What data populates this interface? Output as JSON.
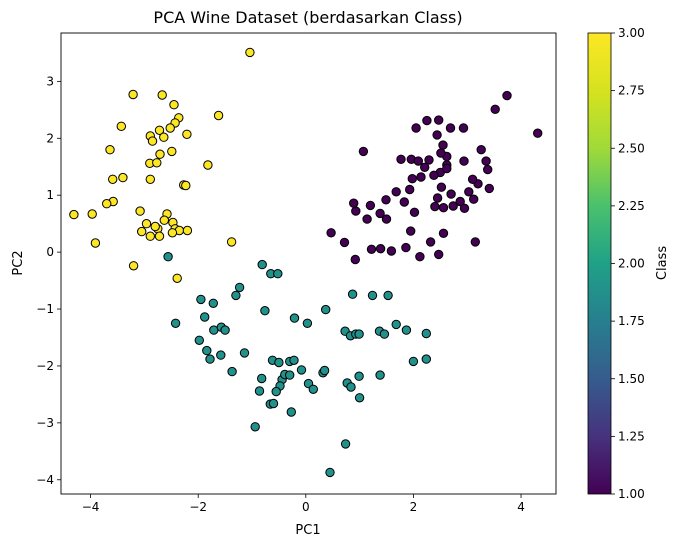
{
  "chart_data": {
    "type": "scatter",
    "title": "PCA Wine Dataset (berdasarkan Class)",
    "xlabel": "PC1",
    "ylabel": "PC2",
    "xlim": [
      -4.55,
      4.65
    ],
    "ylim": [
      -4.25,
      3.85
    ],
    "xticks": [
      -4,
      -2,
      0,
      2,
      4
    ],
    "yticks": [
      -4,
      -3,
      -2,
      -1,
      0,
      1,
      2,
      3
    ],
    "xtick_labels": [
      "−4",
      "−2",
      "0",
      "2",
      "4"
    ],
    "ytick_labels": [
      "−4",
      "−3",
      "−2",
      "−1",
      "0",
      "1",
      "2",
      "3"
    ],
    "grid": false,
    "legend": "none",
    "colorbar": {
      "label": "Class",
      "range": [
        1.0,
        3.0
      ],
      "ticks": [
        1.0,
        1.25,
        1.5,
        1.75,
        2.0,
        2.25,
        2.5,
        2.75,
        3.0
      ],
      "tick_labels": [
        "1.00",
        "1.25",
        "1.50",
        "1.75",
        "2.00",
        "2.25",
        "2.50",
        "2.75",
        "3.00"
      ],
      "colormap": "viridis",
      "colors": [
        "#440154",
        "#3b528b",
        "#21918c",
        "#5ec962",
        "#fde725"
      ]
    },
    "series": [
      {
        "class": 1,
        "color": "#440154",
        "points": [
          [
            4.31,
            2.09
          ],
          [
            3.74,
            2.75
          ],
          [
            3.52,
            2.51
          ],
          [
            3.38,
            1.45
          ],
          [
            3.26,
            1.8
          ],
          [
            3.35,
            1.6
          ],
          [
            3.41,
            1.12
          ],
          [
            3.2,
            1.2
          ],
          [
            3.1,
            1.28
          ],
          [
            2.94,
            1.6
          ],
          [
            3.03,
            1.06
          ],
          [
            2.87,
            0.89
          ],
          [
            2.95,
            0.77
          ],
          [
            2.74,
            0.81
          ],
          [
            2.7,
            1.02
          ],
          [
            2.62,
            1.53
          ],
          [
            2.62,
            1.68
          ],
          [
            2.55,
            1.88
          ],
          [
            2.51,
            1.74
          ],
          [
            2.5,
            1.4
          ],
          [
            2.45,
            0.95
          ],
          [
            2.38,
            1.35
          ],
          [
            2.29,
            1.62
          ],
          [
            2.21,
            1.49
          ],
          [
            2.52,
            1.14
          ],
          [
            2.56,
            0.78
          ],
          [
            2.4,
            0.8
          ],
          [
            2.47,
            2.32
          ],
          [
            2.69,
            2.18
          ],
          [
            2.93,
            2.18
          ],
          [
            2.44,
            2.06
          ],
          [
            2.25,
            2.31
          ],
          [
            2.05,
            2.18
          ],
          [
            1.96,
            1.63
          ],
          [
            2.09,
            1.6
          ],
          [
            2.14,
            1.32
          ],
          [
            1.98,
            1.29
          ],
          [
            1.93,
            1.1
          ],
          [
            2.02,
            0.7
          ],
          [
            1.83,
            0.88
          ],
          [
            1.68,
            1.06
          ],
          [
            1.49,
            0.92
          ],
          [
            1.38,
            0.68
          ],
          [
            1.2,
            0.82
          ],
          [
            1.07,
            1.77
          ],
          [
            1.14,
            0.58
          ],
          [
            0.89,
            0.86
          ],
          [
            0.93,
            0.72
          ],
          [
            1.39,
            0.06
          ],
          [
            1.59,
            0.02
          ],
          [
            1.95,
            0.37
          ],
          [
            2.12,
            -0.08
          ],
          [
            2.32,
            0.18
          ],
          [
            2.47,
            -0.04
          ],
          [
            2.56,
            0.33
          ],
          [
            3.15,
            0.18
          ],
          [
            0.47,
            0.34
          ],
          [
            0.72,
            0.17
          ],
          [
            0.92,
            -0.13
          ],
          [
            1.22,
            0.05
          ],
          [
            1.86,
            0.08
          ],
          [
            2.62,
            1.47
          ],
          [
            3.12,
            0.93
          ],
          [
            1.77,
            1.63
          ],
          [
            1.5,
            0.58
          ]
        ]
      },
      {
        "class": 2,
        "color": "#21918c",
        "points": [
          [
            -2.56,
            -0.08
          ],
          [
            -2.42,
            -1.25
          ],
          [
            -1.95,
            -0.83
          ],
          [
            -1.72,
            -0.9
          ],
          [
            -1.88,
            -1.14
          ],
          [
            -1.71,
            -1.37
          ],
          [
            -1.57,
            -1.32
          ],
          [
            -1.5,
            -1.37
          ],
          [
            -1.3,
            -0.76
          ],
          [
            -1.23,
            -0.62
          ],
          [
            -0.81,
            -0.22
          ],
          [
            -0.65,
            -0.38
          ],
          [
            -0.52,
            -0.38
          ],
          [
            -0.76,
            -1.03
          ],
          [
            -1.98,
            -1.55
          ],
          [
            -1.84,
            -1.73
          ],
          [
            -1.78,
            -1.88
          ],
          [
            -1.58,
            -1.81
          ],
          [
            -1.14,
            -1.77
          ],
          [
            -1.37,
            -2.1
          ],
          [
            -0.86,
            -2.44
          ],
          [
            -0.82,
            -2.22
          ],
          [
            -0.62,
            -1.9
          ],
          [
            -0.5,
            -1.94
          ],
          [
            -0.3,
            -1.92
          ],
          [
            -0.22,
            -1.9
          ],
          [
            -0.44,
            -2.24
          ],
          [
            -0.39,
            -2.15
          ],
          [
            -0.48,
            -2.35
          ],
          [
            -0.3,
            -2.16
          ],
          [
            -0.08,
            -2.07
          ],
          [
            -0.55,
            -2.45
          ],
          [
            -0.66,
            -2.67
          ],
          [
            -0.6,
            -2.66
          ],
          [
            -0.27,
            -2.81
          ],
          [
            0.05,
            -2.31
          ],
          [
            0.14,
            -2.41
          ],
          [
            0.32,
            -2.12
          ],
          [
            0.35,
            -2.08
          ],
          [
            -0.94,
            -3.07
          ],
          [
            -0.21,
            -1.16
          ],
          [
            0.03,
            -1.25
          ],
          [
            0.37,
            -1.01
          ],
          [
            0.87,
            -0.74
          ],
          [
            1.24,
            -0.76
          ],
          [
            1.53,
            -0.76
          ],
          [
            1.68,
            -1.27
          ],
          [
            1.37,
            -1.39
          ],
          [
            1.46,
            -1.44
          ],
          [
            1.87,
            -1.37
          ],
          [
            2.24,
            -1.43
          ],
          [
            0.73,
            -1.39
          ],
          [
            0.83,
            -1.47
          ],
          [
            0.93,
            -1.44
          ],
          [
            0.99,
            -1.44
          ],
          [
            0.77,
            -2.3
          ],
          [
            0.84,
            -2.37
          ],
          [
            0.99,
            -2.18
          ],
          [
            1.38,
            -2.16
          ],
          [
            1.0,
            -2.56
          ],
          [
            2.0,
            -1.92
          ],
          [
            2.24,
            -1.88
          ],
          [
            0.74,
            -3.37
          ],
          [
            0.45,
            -3.87
          ]
        ]
      },
      {
        "class": 3,
        "color": "#fde725",
        "points": [
          [
            -1.04,
            3.51
          ],
          [
            -3.21,
            2.77
          ],
          [
            -2.67,
            2.76
          ],
          [
            -2.45,
            2.59
          ],
          [
            -2.36,
            2.36
          ],
          [
            -2.43,
            2.27
          ],
          [
            -2.52,
            2.18
          ],
          [
            -2.72,
            2.14
          ],
          [
            -2.89,
            2.04
          ],
          [
            -2.85,
            1.95
          ],
          [
            -2.64,
            2.02
          ],
          [
            -2.21,
            2.07
          ],
          [
            -3.43,
            2.21
          ],
          [
            -3.64,
            1.8
          ],
          [
            -2.49,
            1.77
          ],
          [
            -2.71,
            1.72
          ],
          [
            -2.9,
            1.56
          ],
          [
            -2.77,
            1.57
          ],
          [
            -1.82,
            1.53
          ],
          [
            -1.62,
            2.4
          ],
          [
            -3.59,
            1.28
          ],
          [
            -3.4,
            1.31
          ],
          [
            -2.89,
            1.28
          ],
          [
            -2.27,
            1.18
          ],
          [
            -2.23,
            1.17
          ],
          [
            -3.58,
            0.89
          ],
          [
            -3.7,
            0.85
          ],
          [
            -4.31,
            0.66
          ],
          [
            -3.97,
            0.67
          ],
          [
            -3.91,
            0.16
          ],
          [
            -3.08,
            0.72
          ],
          [
            -2.58,
            0.67
          ],
          [
            -2.63,
            0.56
          ],
          [
            -2.96,
            0.5
          ],
          [
            -2.75,
            0.41
          ],
          [
            -2.8,
            0.45
          ],
          [
            -3.05,
            0.36
          ],
          [
            -2.89,
            0.28
          ],
          [
            -2.72,
            0.28
          ],
          [
            -2.47,
            0.52
          ],
          [
            -2.43,
            0.41
          ],
          [
            -2.35,
            0.38
          ],
          [
            -2.2,
            0.38
          ],
          [
            -2.48,
            0.34
          ],
          [
            -3.2,
            -0.24
          ],
          [
            -2.39,
            -0.46
          ],
          [
            -1.38,
            0.18
          ]
        ]
      }
    ]
  }
}
